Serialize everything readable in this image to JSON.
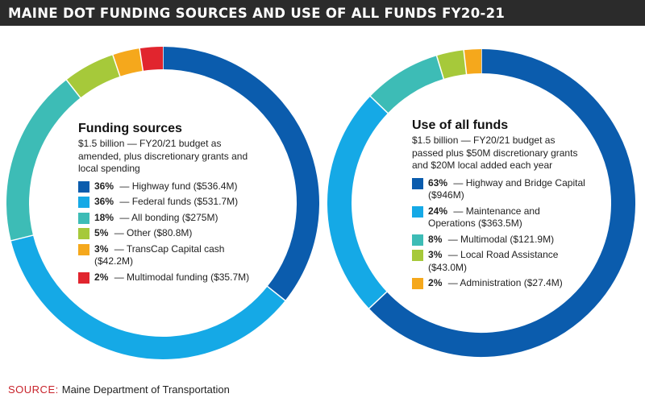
{
  "title": "MAINE DOT FUNDING SOURCES AND USE OF ALL FUNDS FY20-21",
  "source": {
    "prefix": "SOURCE:",
    "text": "Maine Department of Transportation"
  },
  "chart_data": [
    {
      "type": "pie",
      "title": "Funding sources",
      "subtitle": "$1.5 billion — FY20/21 budget as amended, plus discretionary grants and local spending",
      "slices": [
        {
          "pct": 36,
          "label": "Highway fund ($536.4M)",
          "value": 536.4,
          "color": "#0b5cad"
        },
        {
          "pct": 36,
          "label": "Federal funds ($531.7M)",
          "value": 531.7,
          "color": "#15a9e6"
        },
        {
          "pct": 18,
          "label": "All bonding ($275M)",
          "value": 275,
          "color": "#3dbcb6"
        },
        {
          "pct": 5,
          "label": "Other ($80.8M)",
          "value": 80.8,
          "color": "#a6c93a"
        },
        {
          "pct": 3,
          "label": "TransCap Capital cash ($42.2M)",
          "value": 42.2,
          "color": "#f5a81c"
        },
        {
          "pct": 2,
          "label": "Multimodal funding ($35.7M)",
          "value": 35.7,
          "color": "#e1252e"
        }
      ]
    },
    {
      "type": "pie",
      "title": "Use of all funds",
      "subtitle": "$1.5 billion — FY20/21 budget as passed plus $50M discretionary grants and $20M local added each year",
      "slices": [
        {
          "pct": 63,
          "label": "Highway and Bridge Capital ($946M)",
          "value": 946,
          "color": "#0b5cad"
        },
        {
          "pct": 24,
          "label": "Maintenance and Operations ($363.5M)",
          "value": 363.5,
          "color": "#15a9e6"
        },
        {
          "pct": 8,
          "label": "Multimodal ($121.9M)",
          "value": 121.9,
          "color": "#3dbcb6"
        },
        {
          "pct": 3,
          "label": "Local Road Assistance ($43.0M)",
          "value": 43.0,
          "color": "#a6c93a"
        },
        {
          "pct": 2,
          "label": "Administration ($27.4M)",
          "value": 27.4,
          "color": "#f5a81c"
        }
      ]
    }
  ]
}
